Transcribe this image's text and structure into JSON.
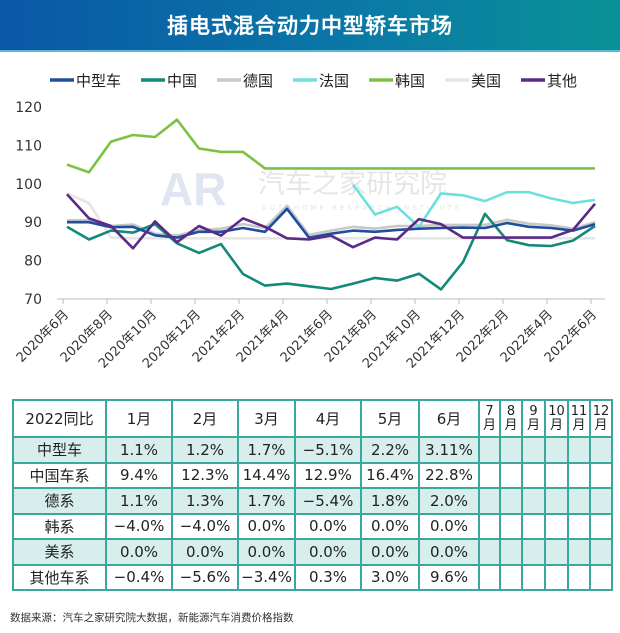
{
  "title": "插电式混合动力中型轿车市场",
  "watermark": {
    "logo": "AR",
    "text": "汽车之家研究院",
    "subtext": "AUTOHOME RESEARCH INSTITUTE"
  },
  "chart_data": {
    "type": "line",
    "title": "",
    "legend_position": "top",
    "ylim": [
      70,
      120
    ],
    "yticks": [
      70,
      80,
      90,
      100,
      110,
      120
    ],
    "x": [
      "2020年6月",
      "2020年7月",
      "2020年8月",
      "2020年9月",
      "2020年10月",
      "2020年11月",
      "2020年12月",
      "2021年1月",
      "2021年2月",
      "2021年3月",
      "2021年4月",
      "2021年5月",
      "2021年6月",
      "2021年7月",
      "2021年8月",
      "2021年9月",
      "2021年10月",
      "2021年11月",
      "2021年12月",
      "2022年1月",
      "2022年2月",
      "2022年3月",
      "2022年4月",
      "2022年5月",
      "2022年6月"
    ],
    "xtick_labels": [
      "2020年6月",
      "2020年8月",
      "2020年10月",
      "2020年12月",
      "2021年2月",
      "2021年4月",
      "2021年6月",
      "2021年8月",
      "2021年10月",
      "2021年12月",
      "2022年2月",
      "2022年4月",
      "2022年6月"
    ],
    "series": [
      {
        "name": "中型车",
        "color": "#1f4e9c",
        "values": [
          90,
          90,
          88.7,
          88.8,
          86.6,
          86,
          87.5,
          87.5,
          88.5,
          87.5,
          93.5,
          86,
          87,
          87.8,
          87.5,
          88,
          88.3,
          88.5,
          88.6,
          88.5,
          89.8,
          88.8,
          88.5,
          87.8,
          89.5
        ]
      },
      {
        "name": "中国",
        "color": "#13897a",
        "values": [
          88.8,
          85.5,
          87.8,
          87.3,
          89.5,
          84.5,
          82,
          84.3,
          76.5,
          73.5,
          74,
          73.3,
          72.6,
          74,
          75.5,
          74.8,
          76.6,
          72.5,
          79.6,
          92.2,
          85.3,
          84,
          83.8,
          85.2,
          89
        ]
      },
      {
        "name": "德国",
        "color": "#c8c8c8",
        "values": [
          90.5,
          90.5,
          89,
          89.4,
          87,
          86.5,
          88,
          88.3,
          89.5,
          88.5,
          94.3,
          86.7,
          87.8,
          88.8,
          88.3,
          89,
          89,
          89.3,
          89.3,
          89.3,
          90.6,
          89.6,
          89.2,
          88.3,
          90
        ]
      },
      {
        "name": "法国",
        "color": "#6ee0dc",
        "values": [
          null,
          null,
          null,
          null,
          null,
          null,
          null,
          null,
          null,
          null,
          null,
          null,
          null,
          99.8,
          92,
          94,
          88.8,
          97.5,
          97,
          95.5,
          97.8,
          97.8,
          96.2,
          95,
          95.8
        ]
      },
      {
        "name": "韩国",
        "color": "#7cc242",
        "values": [
          105,
          103,
          111,
          112.7,
          112.2,
          116.7,
          109.2,
          108.3,
          108.3,
          104,
          104,
          104,
          104,
          104,
          104,
          104,
          104,
          104,
          104,
          104,
          104,
          104,
          104,
          104,
          104
        ]
      },
      {
        "name": "美国",
        "color": "#e6e6e6",
        "values": [
          97.5,
          95,
          86,
          85.8,
          85.8,
          85.8,
          85.8,
          85.8,
          85.8,
          85.8,
          85.8,
          85.8,
          85.8,
          85.8,
          85.8,
          85.8,
          85.8,
          85.8,
          85.8,
          85.8,
          85.8,
          85.8,
          85.8,
          85.8,
          85.8
        ]
      },
      {
        "name": "其他",
        "color": "#5b2a86",
        "values": [
          97.3,
          91,
          89,
          83.2,
          90.2,
          84.8,
          89,
          86.5,
          91,
          88.8,
          85.8,
          85.5,
          86.5,
          83.5,
          86,
          85.5,
          90.8,
          89.5,
          86,
          86,
          86,
          86,
          86,
          88,
          94.8
        ]
      }
    ]
  },
  "table": {
    "header": [
      "2022同比",
      "1月",
      "2月",
      "3月",
      "4月",
      "5月",
      "6月",
      "7月",
      "8月",
      "9月",
      "10月",
      "11月",
      "12月"
    ],
    "rows": [
      {
        "label": "中型车",
        "values": [
          "1.1%",
          "1.2%",
          "1.7%",
          "−5.1%",
          "2.2%",
          "3.11%"
        ]
      },
      {
        "label": "中国车系",
        "values": [
          "9.4%",
          "12.3%",
          "14.4%",
          "12.9%",
          "16.4%",
          "22.8%"
        ]
      },
      {
        "label": "德系",
        "values": [
          "1.1%",
          "1.3%",
          "1.7%",
          "−5.4%",
          "1.8%",
          "2.0%"
        ]
      },
      {
        "label": "韩系",
        "values": [
          "−4.0%",
          "−4.0%",
          "0.0%",
          "0.0%",
          "0.0%",
          "0.0%"
        ]
      },
      {
        "label": "美系",
        "values": [
          "0.0%",
          "0.0%",
          "0.0%",
          "0.0%",
          "0.0%",
          "0.0%"
        ]
      },
      {
        "label": "其他车系",
        "values": [
          "−0.4%",
          "−5.6%",
          "−3.4%",
          "0.3%",
          "3.0%",
          "9.6%"
        ]
      }
    ]
  },
  "footer": "数据来源：汽车之家研究院大数据，新能源汽车消费价格指数"
}
